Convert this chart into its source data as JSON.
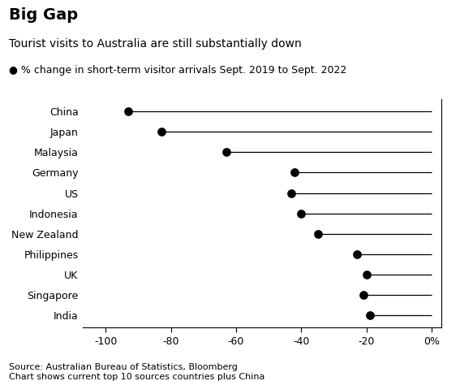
{
  "title": "Big Gap",
  "subtitle": "Tourist visits to Australia are still substantially down",
  "legend_label": "● % change in short-term visitor arrivals Sept. 2019 to Sept. 2022",
  "source_text": "Source: Australian Bureau of Statistics, Bloomberg\nChart shows current top 10 sources countries plus China",
  "categories": [
    "China",
    "Japan",
    "Malaysia",
    "Germany",
    "US",
    "Indonesia",
    "New Zealand",
    "Philippines",
    "UK",
    "Singapore",
    "India"
  ],
  "values": [
    -93,
    -83,
    -63,
    -42,
    -43,
    -40,
    -35,
    -23,
    -20,
    -21,
    -19
  ],
  "xlim": [
    -107,
    3
  ],
  "xticks": [
    -100,
    -80,
    -60,
    -40,
    -20,
    0
  ],
  "xticklabels": [
    "-100",
    "-80",
    "-60",
    "-40",
    "-20",
    "0%"
  ],
  "dot_color": "#000000",
  "line_color": "#000000",
  "background_color": "#ffffff",
  "dot_size": 45,
  "title_fontsize": 14,
  "subtitle_fontsize": 10,
  "legend_fontsize": 9,
  "tick_fontsize": 9,
  "source_fontsize": 8,
  "category_fontsize": 9,
  "zero_line_x": 0
}
